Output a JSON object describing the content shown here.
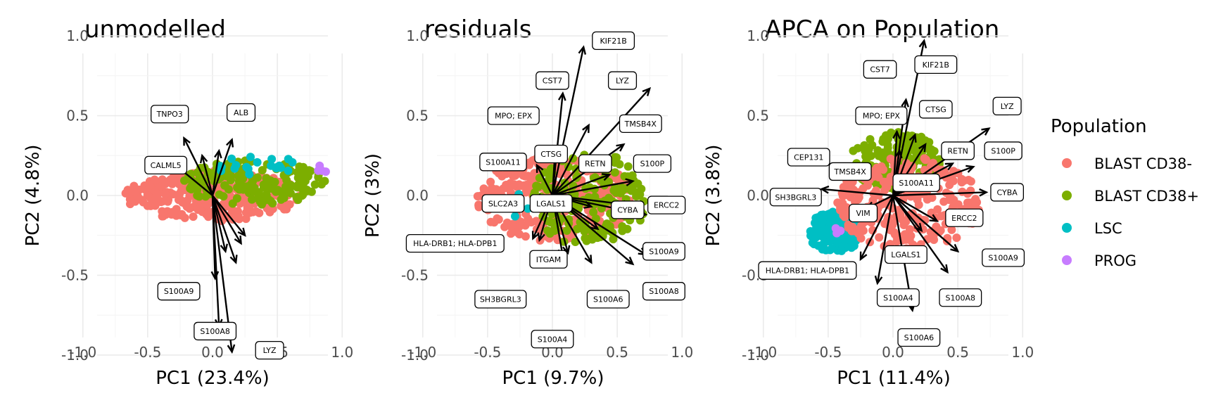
{
  "chart_data": [
    {
      "type": "scatter",
      "title": "unmodelled",
      "xlabel": "PC1 (23.4%)",
      "ylabel": "PC2 (4.8%)",
      "xlim": [
        -1.0,
        1.0
      ],
      "ylim": [
        -1.0,
        1.0
      ],
      "xticks": [
        "-1.0",
        "-0.5",
        "0.0",
        "0.5",
        "1.0"
      ],
      "yticks": [
        "1.0",
        "0.5",
        "0.0",
        "-0.5",
        "-1.0"
      ],
      "grid": true,
      "clouds": [
        {
          "series": "BLAST CD38-",
          "cx": 0.0,
          "cy": 0.0,
          "rx": 0.68,
          "ry": 0.16,
          "n": 320
        },
        {
          "series": "BLAST CD38+",
          "cx": 0.32,
          "cy": 0.08,
          "rx": 0.55,
          "ry": 0.14,
          "n": 180
        },
        {
          "series": "LSC",
          "cx": 0.35,
          "cy": 0.18,
          "rx": 0.3,
          "ry": 0.08,
          "n": 20
        },
        {
          "series": "PROG",
          "cx": 0.85,
          "cy": 0.16,
          "rx": 0.1,
          "ry": 0.03,
          "n": 4
        }
      ],
      "arrows": [
        {
          "label": "TNPO3",
          "x": -0.22,
          "y": 0.36,
          "lx": -0.33,
          "ly": 0.51
        },
        {
          "label": "ALB",
          "x": 0.15,
          "y": 0.35,
          "lx": 0.22,
          "ly": 0.52
        },
        {
          "label": "CALML5",
          "x": -0.27,
          "y": 0.18,
          "lx": -0.36,
          "ly": 0.19
        },
        {
          "label": "S100A9",
          "x": 0.02,
          "y": -0.52,
          "lx": -0.26,
          "ly": -0.6
        },
        {
          "label": "S100A8",
          "x": 0.05,
          "y": -0.82,
          "lx": 0.02,
          "ly": -0.85
        },
        {
          "label": "LYZ",
          "x": 0.15,
          "y": -0.98,
          "lx": 0.44,
          "ly": -0.97
        },
        {
          "label": "",
          "x": 0.22,
          "y": -0.3
        },
        {
          "label": "",
          "x": 0.1,
          "y": -0.35
        },
        {
          "label": "",
          "x": 0.25,
          "y": -0.25
        },
        {
          "label": "",
          "x": 0.18,
          "y": -0.42
        },
        {
          "label": "",
          "x": -0.08,
          "y": 0.25
        },
        {
          "label": "",
          "x": 0.05,
          "y": 0.28
        }
      ]
    },
    {
      "type": "scatter",
      "title": "residuals",
      "xlabel": "PC1 (9.7%)",
      "ylabel": "PC2 (3%)",
      "xlim": [
        -1.0,
        1.0
      ],
      "ylim": [
        -1.0,
        1.0
      ],
      "xticks": [
        "-1.0",
        "-0.5",
        "0.0",
        "0.5",
        "1.0"
      ],
      "yticks": [
        "1.0",
        "0.5",
        "0.0",
        "-0.5",
        "-1.0"
      ],
      "grid": true,
      "clouds": [
        {
          "series": "BLAST CD38-",
          "cx": 0.02,
          "cy": -0.02,
          "rx": 0.6,
          "ry": 0.27,
          "n": 320
        },
        {
          "series": "BLAST CD38+",
          "cx": 0.28,
          "cy": -0.02,
          "rx": 0.45,
          "ry": 0.3,
          "n": 170
        },
        {
          "series": "LSC",
          "cx": -0.2,
          "cy": -0.05,
          "rx": 0.2,
          "ry": 0.1,
          "n": 6
        }
      ],
      "arrows": [
        {
          "label": "KIF21B",
          "x": 0.24,
          "y": 0.93,
          "lx": 0.47,
          "ly": 0.97
        },
        {
          "label": "CST7",
          "x": 0.08,
          "y": 0.64,
          "lx": 0.0,
          "ly": 0.72
        },
        {
          "label": "LYZ",
          "x": 0.75,
          "y": 0.67,
          "lx": 0.54,
          "ly": 0.72
        },
        {
          "label": "MPO; EPX",
          "x": 0.28,
          "y": 0.44,
          "lx": -0.3,
          "ly": 0.5
        },
        {
          "label": "TMSB4X",
          "x": 0.55,
          "y": 0.32,
          "lx": 0.68,
          "ly": 0.45
        },
        {
          "label": "CTSG",
          "x": 0.02,
          "y": 0.27,
          "lx": -0.01,
          "ly": 0.26
        },
        {
          "label": "RETN",
          "x": 0.44,
          "y": 0.13,
          "lx": 0.33,
          "ly": 0.2
        },
        {
          "label": "S100A11",
          "x": -0.12,
          "y": 0.19,
          "lx": -0.38,
          "ly": 0.21
        },
        {
          "label": "S100P",
          "x": 0.62,
          "y": 0.09,
          "lx": 0.77,
          "ly": 0.2
        },
        {
          "label": "SLC2A3",
          "x": -0.14,
          "y": -0.02,
          "lx": -0.38,
          "ly": -0.05
        },
        {
          "label": "LGALS1",
          "x": 0.3,
          "y": -0.07,
          "lx": -0.01,
          "ly": -0.05
        },
        {
          "label": "CYBA",
          "x": 0.6,
          "y": -0.06,
          "lx": 0.58,
          "ly": -0.09
        },
        {
          "label": "ERCC2",
          "x": 0.72,
          "y": -0.12,
          "lx": 0.88,
          "ly": -0.06
        },
        {
          "label": "HLA-DRB1; HLA-DPB1",
          "x": -0.15,
          "y": -0.27,
          "lx": -0.75,
          "ly": -0.3
        },
        {
          "label": "ITGAM",
          "x": 0.35,
          "y": -0.21,
          "lx": -0.03,
          "ly": -0.4
        },
        {
          "label": "S100A9",
          "x": 0.72,
          "y": -0.37,
          "lx": 0.86,
          "ly": -0.35
        },
        {
          "label": "SH3BGRL3",
          "x": 0.12,
          "y": -0.36,
          "lx": -0.4,
          "ly": -0.65
        },
        {
          "label": "S100A6",
          "x": 0.3,
          "y": -0.42,
          "lx": 0.43,
          "ly": -0.65
        },
        {
          "label": "S100A8",
          "x": 0.62,
          "y": -0.43,
          "lx": 0.86,
          "ly": -0.6
        },
        {
          "label": "S100A4",
          "x": 0.08,
          "y": -0.38,
          "lx": 0.0,
          "ly": -0.9
        },
        {
          "label": "",
          "x": -0.1,
          "y": -0.28
        }
      ]
    },
    {
      "type": "scatter",
      "title": "APCA on Population",
      "xlabel": "PC1 (11.4%)",
      "ylabel": "PC2 (3.8%)",
      "xlim": [
        -1.0,
        1.0
      ],
      "ylim": [
        -1.0,
        1.0
      ],
      "xticks": [
        "-1.0",
        "-0.5",
        "0.0",
        "0.5",
        "1.0"
      ],
      "yticks": [
        "1.0",
        "0.5",
        "0.0",
        "-0.5",
        "-1.0"
      ],
      "grid": true,
      "clouds": [
        {
          "series": "BLAST CD38+",
          "cx": 0.02,
          "cy": 0.22,
          "rx": 0.35,
          "ry": 0.18,
          "n": 160
        },
        {
          "series": "LSC",
          "cx": -0.45,
          "cy": -0.23,
          "rx": 0.2,
          "ry": 0.13,
          "n": 110
        },
        {
          "series": "BLAST CD38-",
          "cx": 0.12,
          "cy": -0.05,
          "rx": 0.55,
          "ry": 0.3,
          "n": 300
        },
        {
          "series": "PROG",
          "cx": -0.42,
          "cy": -0.22,
          "rx": 0.05,
          "ry": 0.03,
          "n": 3
        }
      ],
      "arrows": [
        {
          "label": "CST7",
          "x": 0.1,
          "y": 0.6,
          "lx": -0.1,
          "ly": 0.79
        },
        {
          "label": "KIF21B",
          "x": 0.24,
          "y": 0.97,
          "lx": 0.33,
          "ly": 0.82
        },
        {
          "label": "LYZ",
          "x": 0.74,
          "y": 0.42,
          "lx": 0.88,
          "ly": 0.56
        },
        {
          "label": "MPO; EPX",
          "x": 0.03,
          "y": 0.4,
          "lx": -0.09,
          "ly": 0.5
        },
        {
          "label": "CTSG",
          "x": 0.17,
          "y": 0.38,
          "lx": 0.33,
          "ly": 0.54
        },
        {
          "label": "CEP131",
          "x": 0.25,
          "y": 0.32,
          "lx": -0.65,
          "ly": 0.24
        },
        {
          "label": "RETN",
          "x": 0.46,
          "y": 0.2,
          "lx": 0.5,
          "ly": 0.28
        },
        {
          "label": "S100P",
          "x": 0.62,
          "y": 0.18,
          "lx": 0.85,
          "ly": 0.28
        },
        {
          "label": "TMSB4X",
          "x": 0.05,
          "y": 0.28,
          "lx": -0.33,
          "ly": 0.15
        },
        {
          "label": "S100A11",
          "x": 0.1,
          "y": 0.1,
          "lx": 0.18,
          "ly": 0.08
        },
        {
          "label": "CYBA",
          "x": 0.72,
          "y": 0.02,
          "lx": 0.88,
          "ly": 0.02
        },
        {
          "label": "SH3BGRL3",
          "x": -0.55,
          "y": 0.04,
          "lx": -0.75,
          "ly": -0.01
        },
        {
          "label": "VIM",
          "x": -0.2,
          "y": -0.08,
          "lx": -0.23,
          "ly": -0.11
        },
        {
          "label": "ERCC2",
          "x": 0.34,
          "y": -0.16,
          "lx": 0.55,
          "ly": -0.14
        },
        {
          "label": "LGALS1",
          "x": 0.22,
          "y": -0.22,
          "lx": 0.1,
          "ly": -0.37
        },
        {
          "label": "S100A9",
          "x": 0.5,
          "y": -0.35,
          "lx": 0.85,
          "ly": -0.39
        },
        {
          "label": "HLA-DRB1; HLA-DPB1",
          "x": -0.25,
          "y": -0.4,
          "lx": -0.66,
          "ly": -0.47
        },
        {
          "label": "S100A4",
          "x": -0.12,
          "y": -0.55,
          "lx": 0.04,
          "ly": -0.64
        },
        {
          "label": "S100A8",
          "x": 0.42,
          "y": -0.48,
          "lx": 0.52,
          "ly": -0.64
        },
        {
          "label": "S100A6",
          "x": 0.15,
          "y": -0.72,
          "lx": 0.2,
          "ly": -0.89
        }
      ]
    }
  ],
  "legend": {
    "title": "Population",
    "placement": "right",
    "items": [
      {
        "label": "BLAST CD38-",
        "color": "#F8766D"
      },
      {
        "label": "BLAST CD38+",
        "color": "#7CAE00"
      },
      {
        "label": "LSC",
        "color": "#00BFC4"
      },
      {
        "label": "PROG",
        "color": "#C77CFF"
      }
    ]
  }
}
